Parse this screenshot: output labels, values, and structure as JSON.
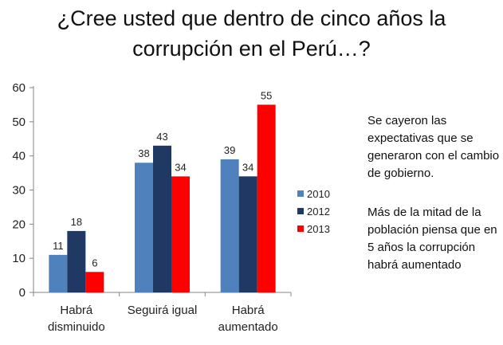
{
  "title": {
    "line1": "¿Cree usted que dentro de cinco años la",
    "line2": "corrupción en el Perú…?"
  },
  "chart_data": {
    "type": "bar",
    "categories": [
      [
        "Habrá",
        "disminuido"
      ],
      [
        "Seguirá igual"
      ],
      [
        "Habrá",
        "aumentado"
      ]
    ],
    "series": [
      {
        "name": "2010",
        "values": [
          11,
          38,
          39
        ],
        "color": "#4F81BD"
      },
      {
        "name": "2012",
        "values": [
          18,
          43,
          34
        ],
        "color": "#1F3864"
      },
      {
        "name": "2013",
        "values": [
          6,
          34,
          55
        ],
        "color": "#FF0000"
      }
    ],
    "ylim": [
      0,
      60
    ],
    "yticks": [
      0,
      10,
      20,
      30,
      40,
      50,
      60
    ],
    "grid": false,
    "data_labels": true,
    "legend": "right"
  },
  "notes": {
    "p1": "Se cayeron las expectativas que se generaron con el cambio de gobierno.",
    "p2": "Más de la mitad de la población piensa que en 5 años la corrupción habrá aumentado"
  }
}
